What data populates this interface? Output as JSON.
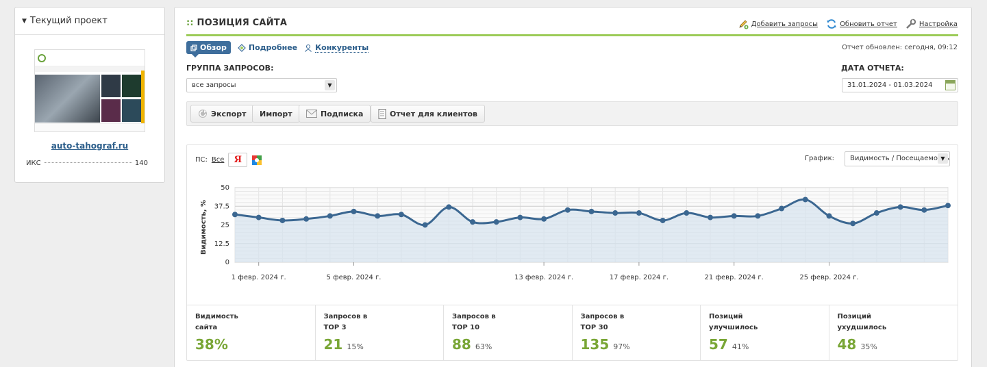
{
  "project": {
    "header": "Текущий проект",
    "site": "auto-tahograf.ru",
    "iks_label": "ИКС",
    "iks_value": "140"
  },
  "main": {
    "title_prefix": "::",
    "title": "ПОЗИЦИЯ САЙТА",
    "actions": [
      {
        "label": "Добавить запросы",
        "icon": "pencil-plus-icon"
      },
      {
        "label": "Обновить отчет",
        "icon": "refresh-icon"
      },
      {
        "label": "Настройка",
        "icon": "wrench-icon"
      }
    ],
    "tabs": [
      {
        "label": "Обзор",
        "active": true,
        "icon": "overview-icon"
      },
      {
        "label": "Подробнее",
        "active": false,
        "icon": "diamond-icon"
      },
      {
        "label": "Конкуренты",
        "active": false,
        "icon": "user-icon"
      }
    ],
    "report_updated": "Отчет обновлен: сегодня, 09:12",
    "group_label": "ГРУППА ЗАПРОСОВ:",
    "group_value": "все запросы",
    "date_label": "ДАТА ОТЧЕТА:",
    "date_value": "31.01.2024 - 01.03.2024",
    "toolbar": [
      {
        "label": "Экспорт",
        "icon": "export-icon"
      },
      {
        "label": "Импорт",
        "icon": ""
      },
      {
        "label": "Подписка",
        "icon": "envelope-icon"
      },
      {
        "label": "Отчет для клиентов",
        "icon": "document-icon"
      }
    ]
  },
  "chart": {
    "ps_label": "ПС:",
    "ps_all": "Все",
    "yandex": "Я",
    "graph_label": "График:",
    "graph_value": "Видимость / Посещаемость"
  },
  "chart_data": {
    "type": "area",
    "ylabel": "Видимость, %",
    "ylim": [
      0,
      50
    ],
    "yticks": [
      "0",
      "12.5",
      "25",
      "37.5",
      "50"
    ],
    "xticks": [
      {
        "day": 1,
        "label": "1 февр. 2024 г."
      },
      {
        "day": 5,
        "label": "5 февр. 2024 г."
      },
      {
        "day": 13,
        "label": "13 февр. 2024 г."
      },
      {
        "day": 17,
        "label": "17 февр. 2024 г."
      },
      {
        "day": 21,
        "label": "21 февр. 2024 г."
      },
      {
        "day": 25,
        "label": "25 февр. 2024 г."
      }
    ],
    "x_days": [
      0,
      1,
      2,
      3,
      4,
      5,
      6,
      7,
      8,
      9,
      10,
      11,
      12,
      13,
      14,
      15,
      16,
      17,
      18,
      19,
      20,
      21,
      22,
      23,
      24,
      25,
      26,
      27,
      28,
      29,
      30
    ],
    "values": [
      32,
      30,
      28,
      29,
      31,
      34,
      31,
      32,
      25,
      37,
      27,
      27,
      30,
      29,
      35,
      34,
      33,
      33,
      28,
      33,
      30,
      31,
      31,
      36,
      42,
      31,
      26,
      33,
      37,
      35,
      38
    ],
    "grid": true,
    "legend": "none",
    "color": "#3b6791"
  },
  "stats": [
    {
      "label": "Видимость\nсайта",
      "value": "38%",
      "pct": ""
    },
    {
      "label": "Запросов в\nTOP 3",
      "value": "21",
      "pct": "15%"
    },
    {
      "label": "Запросов в\nTOP 10",
      "value": "88",
      "pct": "63%"
    },
    {
      "label": "Запросов в\nTOP 30",
      "value": "135",
      "pct": "97%"
    },
    {
      "label": "Позиций\nулучшилось",
      "value": "57",
      "pct": "41%"
    },
    {
      "label": "Позиций\nухудшилось",
      "value": "48",
      "pct": "35%"
    }
  ]
}
